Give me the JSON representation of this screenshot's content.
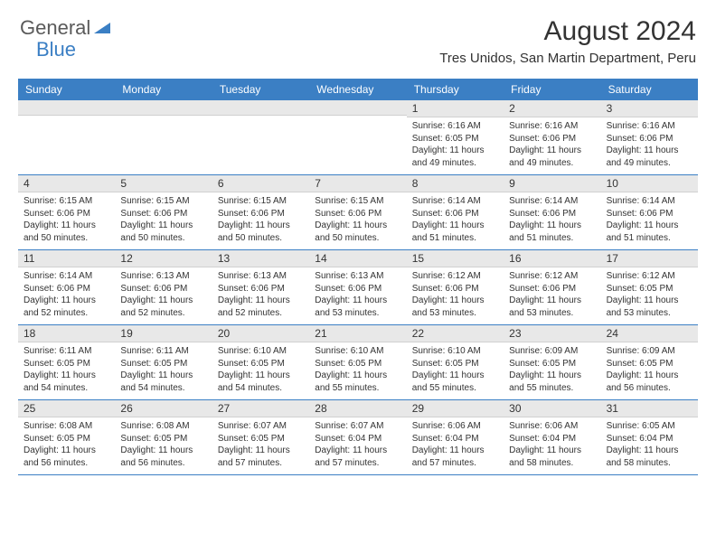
{
  "logo": {
    "text1": "General",
    "text2": "Blue"
  },
  "title": "August 2024",
  "location": "Tres Unidos, San Martin Department, Peru",
  "colors": {
    "header_bg": "#3b7fc4",
    "date_bg": "#e8e8e8",
    "text": "#333333",
    "logo_gray": "#5a5a5a",
    "logo_blue": "#3b7fc4",
    "week_border": "#3b7fc4"
  },
  "day_names": [
    "Sunday",
    "Monday",
    "Tuesday",
    "Wednesday",
    "Thursday",
    "Friday",
    "Saturday"
  ],
  "weeks": [
    [
      null,
      null,
      null,
      null,
      {
        "d": "1",
        "sr": "6:16 AM",
        "ss": "6:05 PM",
        "dl": "11 hours and 49 minutes."
      },
      {
        "d": "2",
        "sr": "6:16 AM",
        "ss": "6:06 PM",
        "dl": "11 hours and 49 minutes."
      },
      {
        "d": "3",
        "sr": "6:16 AM",
        "ss": "6:06 PM",
        "dl": "11 hours and 49 minutes."
      }
    ],
    [
      {
        "d": "4",
        "sr": "6:15 AM",
        "ss": "6:06 PM",
        "dl": "11 hours and 50 minutes."
      },
      {
        "d": "5",
        "sr": "6:15 AM",
        "ss": "6:06 PM",
        "dl": "11 hours and 50 minutes."
      },
      {
        "d": "6",
        "sr": "6:15 AM",
        "ss": "6:06 PM",
        "dl": "11 hours and 50 minutes."
      },
      {
        "d": "7",
        "sr": "6:15 AM",
        "ss": "6:06 PM",
        "dl": "11 hours and 50 minutes."
      },
      {
        "d": "8",
        "sr": "6:14 AM",
        "ss": "6:06 PM",
        "dl": "11 hours and 51 minutes."
      },
      {
        "d": "9",
        "sr": "6:14 AM",
        "ss": "6:06 PM",
        "dl": "11 hours and 51 minutes."
      },
      {
        "d": "10",
        "sr": "6:14 AM",
        "ss": "6:06 PM",
        "dl": "11 hours and 51 minutes."
      }
    ],
    [
      {
        "d": "11",
        "sr": "6:14 AM",
        "ss": "6:06 PM",
        "dl": "11 hours and 52 minutes."
      },
      {
        "d": "12",
        "sr": "6:13 AM",
        "ss": "6:06 PM",
        "dl": "11 hours and 52 minutes."
      },
      {
        "d": "13",
        "sr": "6:13 AM",
        "ss": "6:06 PM",
        "dl": "11 hours and 52 minutes."
      },
      {
        "d": "14",
        "sr": "6:13 AM",
        "ss": "6:06 PM",
        "dl": "11 hours and 53 minutes."
      },
      {
        "d": "15",
        "sr": "6:12 AM",
        "ss": "6:06 PM",
        "dl": "11 hours and 53 minutes."
      },
      {
        "d": "16",
        "sr": "6:12 AM",
        "ss": "6:06 PM",
        "dl": "11 hours and 53 minutes."
      },
      {
        "d": "17",
        "sr": "6:12 AM",
        "ss": "6:05 PM",
        "dl": "11 hours and 53 minutes."
      }
    ],
    [
      {
        "d": "18",
        "sr": "6:11 AM",
        "ss": "6:05 PM",
        "dl": "11 hours and 54 minutes."
      },
      {
        "d": "19",
        "sr": "6:11 AM",
        "ss": "6:05 PM",
        "dl": "11 hours and 54 minutes."
      },
      {
        "d": "20",
        "sr": "6:10 AM",
        "ss": "6:05 PM",
        "dl": "11 hours and 54 minutes."
      },
      {
        "d": "21",
        "sr": "6:10 AM",
        "ss": "6:05 PM",
        "dl": "11 hours and 55 minutes."
      },
      {
        "d": "22",
        "sr": "6:10 AM",
        "ss": "6:05 PM",
        "dl": "11 hours and 55 minutes."
      },
      {
        "d": "23",
        "sr": "6:09 AM",
        "ss": "6:05 PM",
        "dl": "11 hours and 55 minutes."
      },
      {
        "d": "24",
        "sr": "6:09 AM",
        "ss": "6:05 PM",
        "dl": "11 hours and 56 minutes."
      }
    ],
    [
      {
        "d": "25",
        "sr": "6:08 AM",
        "ss": "6:05 PM",
        "dl": "11 hours and 56 minutes."
      },
      {
        "d": "26",
        "sr": "6:08 AM",
        "ss": "6:05 PM",
        "dl": "11 hours and 56 minutes."
      },
      {
        "d": "27",
        "sr": "6:07 AM",
        "ss": "6:05 PM",
        "dl": "11 hours and 57 minutes."
      },
      {
        "d": "28",
        "sr": "6:07 AM",
        "ss": "6:04 PM",
        "dl": "11 hours and 57 minutes."
      },
      {
        "d": "29",
        "sr": "6:06 AM",
        "ss": "6:04 PM",
        "dl": "11 hours and 57 minutes."
      },
      {
        "d": "30",
        "sr": "6:06 AM",
        "ss": "6:04 PM",
        "dl": "11 hours and 58 minutes."
      },
      {
        "d": "31",
        "sr": "6:05 AM",
        "ss": "6:04 PM",
        "dl": "11 hours and 58 minutes."
      }
    ]
  ],
  "labels": {
    "sunrise": "Sunrise:",
    "sunset": "Sunset:",
    "daylight": "Daylight:"
  }
}
